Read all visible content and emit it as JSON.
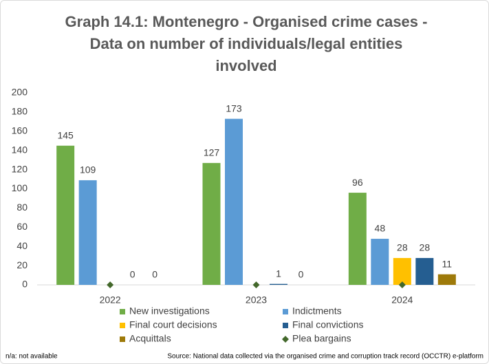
{
  "chart_data": {
    "type": "bar",
    "title": [
      "Graph 14.1: Montenegro - Organised crime cases -",
      "Data on number of individuals/legal entities",
      "involved"
    ],
    "categories": [
      "2022",
      "2023",
      "2024"
    ],
    "series": [
      {
        "name": "New investigations",
        "color": "#70ad47",
        "values": [
          145,
          127,
          96
        ]
      },
      {
        "name": "Indictments",
        "color": "#5b9bd5",
        "values": [
          109,
          173,
          48
        ]
      },
      {
        "name": "Final court decisions",
        "color": "#ffc000",
        "values": [
          null,
          null,
          28
        ]
      },
      {
        "name": "Final convictions",
        "color": "#255e91",
        "values": [
          0,
          1,
          28
        ]
      },
      {
        "name": "Acquittals",
        "color": "#9e7a0a",
        "values": [
          0,
          0,
          11
        ]
      },
      {
        "name": "Plea bargains",
        "color": "#43682b",
        "marker": "diamond",
        "values": [
          0,
          0,
          0
        ]
      }
    ],
    "ylim": [
      0,
      200
    ],
    "yticks": [
      0,
      20,
      40,
      60,
      80,
      100,
      120,
      140,
      160,
      180,
      200
    ],
    "grid": false,
    "footnote": "n/a: not available",
    "source": "Source: National data collected via the organised crime and corruption track record (OCCTR) e-platform"
  }
}
